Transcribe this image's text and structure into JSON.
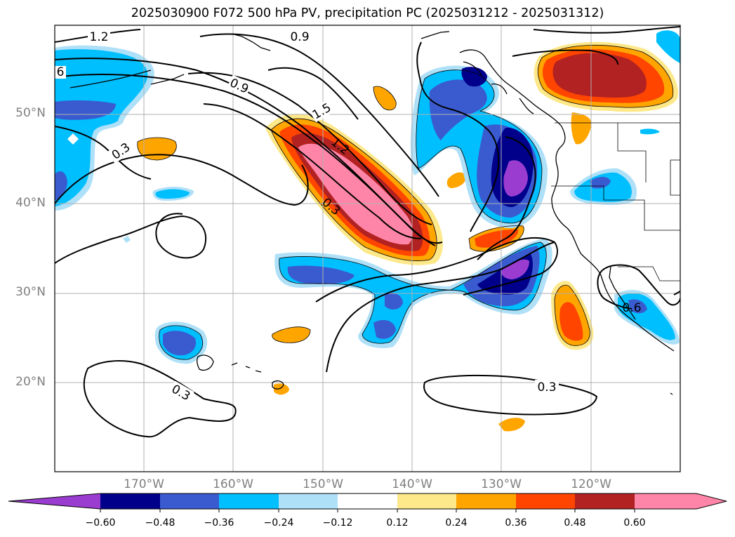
{
  "title": "2025030900 F072 500 hPa PV, precipitation PC (2025031212 - 2025031312)",
  "map": {
    "lat_labels": [
      "50°N",
      "40°N",
      "30°N",
      "20°N"
    ],
    "lon_labels": [
      "170°W",
      "160°W",
      "150°W",
      "140°W",
      "130°W",
      "120°W"
    ],
    "contour_labels": [
      "1.2",
      "0.9",
      "6",
      "0.9",
      "1.5",
      "1.2",
      "0.3",
      "0.3",
      "0.3",
      "0.3",
      "0.3",
      "0.6"
    ]
  },
  "colorbar": {
    "ticks": [
      "−0.60",
      "−0.48",
      "−0.36",
      "−0.24",
      "−0.12",
      "0.12",
      "0.24",
      "0.36",
      "0.48",
      "0.60"
    ],
    "colors": [
      "#9a3ccf",
      "#00008b",
      "#3a5bd0",
      "#00bfff",
      "#aee0f8",
      "#ffffff",
      "#fde88a",
      "#ffa500",
      "#ff4500",
      "#b22222",
      "#ff85a8"
    ]
  }
}
